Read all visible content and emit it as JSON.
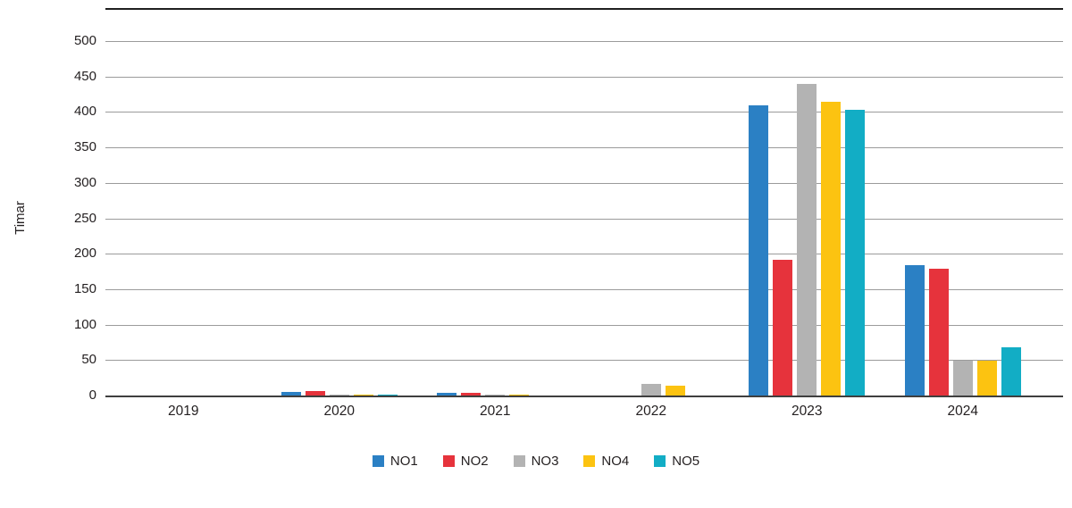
{
  "chart_data": {
    "type": "bar",
    "title": "",
    "ylabel": "Timar",
    "xlabel": "",
    "categories": [
      "2019",
      "2020",
      "2021",
      "2022",
      "2023",
      "2024"
    ],
    "series": [
      {
        "name": "NO1",
        "color": "#2b80c4",
        "values": [
          0,
          6,
          5,
          0,
          410,
          185
        ]
      },
      {
        "name": "NO2",
        "color": "#e6333c",
        "values": [
          0,
          7,
          5,
          0,
          193,
          180
        ]
      },
      {
        "name": "NO3",
        "color": "#b3b3b3",
        "values": [
          0,
          2,
          3,
          18,
          441,
          51
        ]
      },
      {
        "name": "NO4",
        "color": "#fcc311",
        "values": [
          0,
          3,
          3,
          15,
          415,
          50
        ]
      },
      {
        "name": "NO5",
        "color": "#12adc5",
        "values": [
          0,
          3,
          0,
          0,
          404,
          69
        ]
      }
    ],
    "ylim": [
      0,
      500
    ],
    "ytick_step": 50,
    "yticks": [
      0,
      50,
      100,
      150,
      200,
      250,
      300,
      350,
      400,
      450,
      500
    ],
    "grid": true,
    "gridline_color": "#9b9b9b",
    "axis_line_color": "#3f3f3f",
    "top_rule_color": "#1f1f1f",
    "text_color": "#231f20",
    "legend_position": "bottom"
  }
}
